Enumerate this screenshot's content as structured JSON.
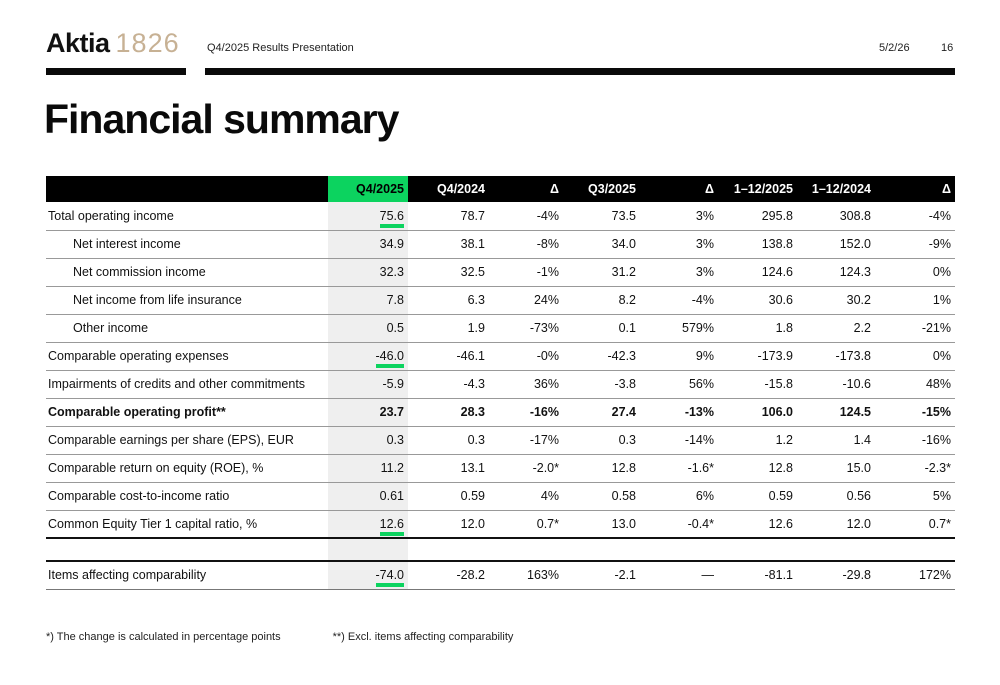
{
  "header": {
    "logo_primary": "Aktia",
    "logo_year": "1826",
    "presentation_title": "Q4/2025 Results Presentation",
    "date": "5/2/26",
    "page_number": "16"
  },
  "page_title": "Financial summary",
  "colors": {
    "accent_green": "#0cd35f",
    "logo_tan": "#c7b194",
    "highlight_column_gray": "#efefef",
    "header_bar_black": "#000000"
  },
  "table": {
    "columns": [
      "",
      "Q4/2025",
      "Q4/2024",
      "Δ",
      "Q3/2025",
      "Δ",
      "1–12/2025",
      "1–12/2024",
      "Δ"
    ],
    "rows": [
      {
        "label": "Total operating income",
        "underline": true,
        "values": [
          "75.6",
          "78.7",
          "-4%",
          "73.5",
          "3%",
          "295.8",
          "308.8",
          "-4%"
        ]
      },
      {
        "label": "Net interest income",
        "indent": true,
        "values": [
          "34.9",
          "38.1",
          "-8%",
          "34.0",
          "3%",
          "138.8",
          "152.0",
          "-9%"
        ]
      },
      {
        "label": "Net commission income",
        "indent": true,
        "values": [
          "32.3",
          "32.5",
          "-1%",
          "31.2",
          "3%",
          "124.6",
          "124.3",
          "0%"
        ]
      },
      {
        "label": "Net income from life insurance",
        "indent": true,
        "values": [
          "7.8",
          "6.3",
          "24%",
          "8.2",
          "-4%",
          "30.6",
          "30.2",
          "1%"
        ]
      },
      {
        "label": "Other income",
        "indent": true,
        "values": [
          "0.5",
          "1.9",
          "-73%",
          "0.1",
          "579%",
          "1.8",
          "2.2",
          "-21%"
        ]
      },
      {
        "label": "Comparable operating expenses",
        "underline": true,
        "values": [
          "-46.0",
          "-46.1",
          "-0%",
          "-42.3",
          "9%",
          "-173.9",
          "-173.8",
          "0%"
        ]
      },
      {
        "label": "Impairments of credits and other commitments",
        "values": [
          "-5.9",
          "-4.3",
          "36%",
          "-3.8",
          "56%",
          "-15.8",
          "-10.6",
          "48%"
        ]
      },
      {
        "label": "Comparable operating profit**",
        "bold": true,
        "values": [
          "23.7",
          "28.3",
          "-16%",
          "27.4",
          "-13%",
          "106.0",
          "124.5",
          "-15%"
        ]
      },
      {
        "label": "Comparable earnings per share (EPS), EUR",
        "values": [
          "0.3",
          "0.3",
          "-17%",
          "0.3",
          "-14%",
          "1.2",
          "1.4",
          "-16%"
        ]
      },
      {
        "label": "Comparable return on equity (ROE), %",
        "values": [
          "11.2",
          "13.1",
          "-2.0*",
          "12.8",
          "-1.6*",
          "12.8",
          "15.0",
          "-2.3*"
        ]
      },
      {
        "label": "Comparable cost-to-income ratio",
        "values": [
          "0.61",
          "0.59",
          "4%",
          "0.58",
          "6%",
          "0.59",
          "0.56",
          "5%"
        ]
      },
      {
        "label": "Common Equity Tier 1 capital ratio, %",
        "underline": true,
        "dark_bottom": true,
        "values": [
          "12.6",
          "12.0",
          "0.7*",
          "13.0",
          "-0.4*",
          "12.6",
          "12.0",
          "0.7*"
        ]
      },
      {
        "spacer": true,
        "dark_bottom": true
      },
      {
        "label": "Items affecting comparability",
        "underline": true,
        "values": [
          "-74.0",
          "-28.2",
          "163%",
          "-2.1",
          "—",
          "-81.1",
          "-29.8",
          "172%"
        ]
      }
    ]
  },
  "footnotes": [
    "*) The change is calculated in percentage points",
    "**) Excl. items affecting comparability"
  ]
}
